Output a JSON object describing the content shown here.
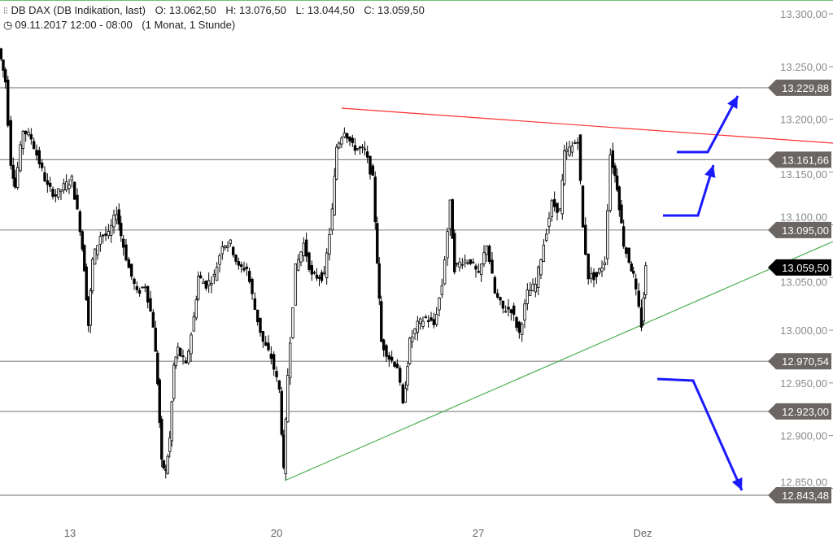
{
  "header": {
    "symbol_icon": "candlestick-icon",
    "instrument": "DB DAX (DB Indikation, last)",
    "open": "O: 13.062,50",
    "high": "H: 13.076,50",
    "low": "L: 13.044,50",
    "close": "C: 13.059,50",
    "clock_icon": "clock-icon",
    "period": "09.11.2017 12:00 - 08:00",
    "range": "(1 Monat, 1 Stunde)"
  },
  "chart_data": {
    "type": "candlestick",
    "title": "DB DAX (DB Indikation, last)",
    "ylim": [
      12830,
      13310
    ],
    "y_ticks": [
      "13.300,00",
      "13.250,00",
      "13.200,00",
      "13.150,00",
      "13.100,00",
      "13.050,00",
      "13.000,00",
      "12.950,00",
      "12.900,00",
      "12.850,00"
    ],
    "y_tick_values": [
      13300,
      13250,
      13200,
      13150,
      13100,
      13050,
      13000,
      12950,
      12900,
      12850
    ],
    "x_ticks": [
      "13",
      "20",
      "27",
      "Dez"
    ],
    "approx_price_path": [
      13267,
      13236,
      13159,
      13136,
      13190,
      13182,
      13159,
      13136,
      13128,
      13136,
      13143,
      13097,
      13059,
      13005,
      13066,
      13090,
      13090,
      13113,
      13090,
      13059,
      13035,
      13043,
      13005,
      12951,
      12874,
      12866,
      12897,
      12966,
      12982,
      12966,
      13012,
      13051,
      13043,
      13051,
      13082,
      13082,
      13059,
      13059,
      13020,
      12989,
      12974,
      12943,
      12866,
      12958,
      13059,
      13082,
      13051,
      13051,
      13113,
      13174,
      13190,
      13174,
      13170,
      13143,
      13066,
      12989,
      12974,
      12966,
      12928,
      12989,
      13005,
      13012,
      13005,
      13043,
      13120,
      13059,
      13066,
      13066,
      13051,
      13082,
      13035,
      13020,
      13020,
      12997,
      13035,
      13043,
      13082,
      13120,
      13113,
      13167,
      13174,
      13182,
      13097,
      13051,
      13051,
      13066,
      13167,
      13136,
      13082,
      13066,
      13051,
      13020,
      13005,
      13059
    ],
    "levels": [
      {
        "value": 13229.88,
        "label": "13.229,88"
      },
      {
        "value": 13161.66,
        "label": "13.161,66"
      },
      {
        "value": 13095.0,
        "label": "13.095,00"
      },
      {
        "value": 12970.54,
        "label": "12.970,54"
      },
      {
        "value": 12923.0,
        "label": "12.923,00"
      },
      {
        "value": 12843.48,
        "label": "12.843,48"
      }
    ],
    "last_price": {
      "value": 13059.5,
      "label": "13.059,50"
    },
    "resistance_trendline_color": "#ff3030",
    "support_trendline_color": "#4caf50",
    "arrow_color": "#1a1aff",
    "level_color": "#888888",
    "tag_color": "#6b6663",
    "last_tag_color": "#000000",
    "grid": false
  }
}
